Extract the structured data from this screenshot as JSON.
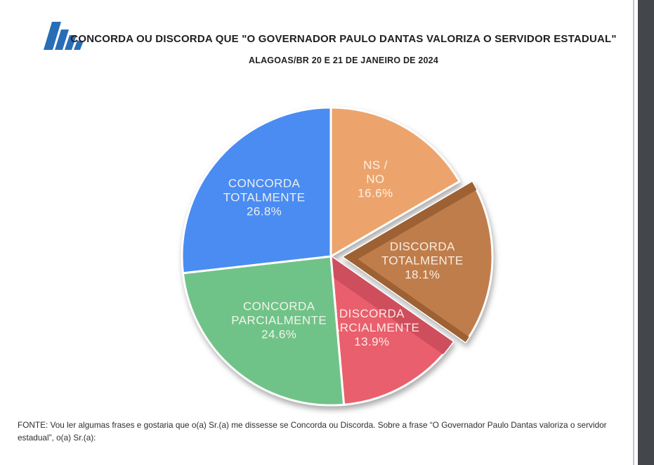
{
  "page": {
    "title": "CONCORDA OU DISCORDA QUE \"O GOVERNADOR PAULO DANTAS VALORIZA O SERVIDOR ESTADUAL\"",
    "subtitle": "ALAGOAS/BR 20 E 21 DE JANEIRO DE 2024",
    "footer": "FONTE: Vou ler algumas frases e gostaria que o(a) Sr.(a) me dissesse se Concorda ou Discorda. Sobre a frase “O Governador Paulo Dantas valoriza o servidor estadual”, o(a) Sr.(a):"
  },
  "logo": {
    "name": "blue-slanted-bars-logo",
    "color": "#2a6db7"
  },
  "chart_data": {
    "type": "pie",
    "title": "CONCORDA OU DISCORDA QUE \"O GOVERNADOR PAULO DANTAS VALORIZA O SERVIDOR ESTADUAL\"",
    "subtitle": "ALAGOAS/BR 20 E 21 DE JANEIRO DE 2024",
    "start_angle_deg": 0,
    "direction": "clockwise",
    "labels_show_percent": true,
    "label_text_color": "rgba(255,250,243,0.9)",
    "explode_distance": 18,
    "slices": [
      {
        "label": "NS / NO",
        "lines": [
          "NS /",
          "NO",
          "16.6%"
        ],
        "value": 16.6,
        "percent_label": "16.6%",
        "color": "#eca46c",
        "exploded": false,
        "label_r": 0.6
      },
      {
        "label": "DISCORDA TOTALMENTE",
        "lines": [
          "DISCORDA",
          "TOTALMENTE",
          "18.1%"
        ],
        "value": 18.1,
        "percent_label": "18.1%",
        "color": "#bf7d4b",
        "exploded": true,
        "label_r": 0.53,
        "shadow_edges": [
          {
            "edge": "start",
            "color": "#9d6134",
            "width": 26
          },
          {
            "edge": "end",
            "color": "#9d6134",
            "width": 18
          }
        ]
      },
      {
        "label": "DISCORDA PARCIALMENTE",
        "lines": [
          "DISCORDA",
          "PARCIALMENTE",
          "13.9%"
        ],
        "value": 13.9,
        "percent_label": "13.9%",
        "color": "#ea5f6d",
        "exploded": false,
        "label_r": 0.55,
        "shadow_edges": [
          {
            "edge": "start",
            "color": "#cf4e5d",
            "width": 46
          }
        ]
      },
      {
        "label": "CONCORDA PARCIALMENTE",
        "lines": [
          "CONCORDA",
          "PARCIALMENTE",
          "24.6%"
        ],
        "value": 24.6,
        "percent_label": "24.6%",
        "color": "#70c388",
        "exploded": false,
        "label_r": 0.55
      },
      {
        "label": "CONCORDA TOTALMENTE",
        "lines": [
          "CONCORDA",
          "TOTALMENTE",
          "26.8%"
        ],
        "value": 26.8,
        "percent_label": "26.8%",
        "color": "#4a8cf1",
        "exploded": false,
        "label_r": 0.6
      }
    ]
  }
}
